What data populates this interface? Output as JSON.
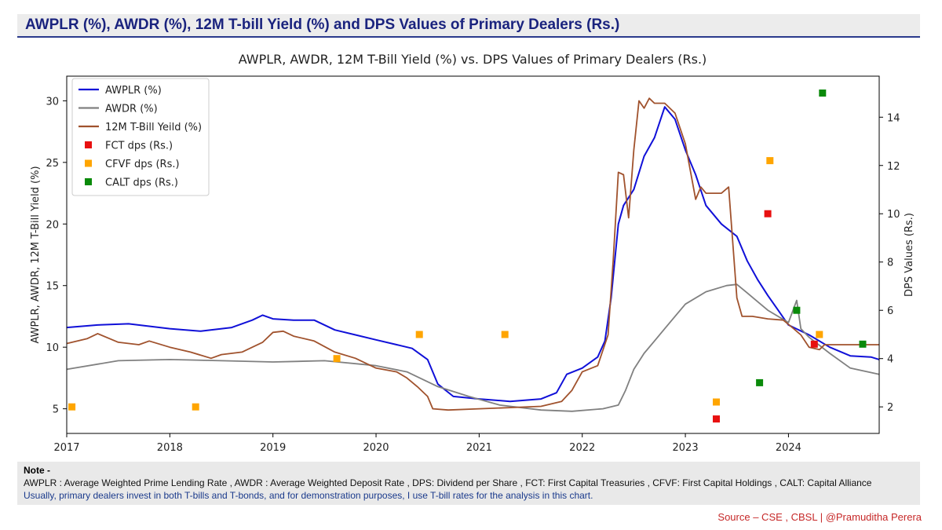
{
  "header": {
    "title": "AWPLR (%), AWDR (%), 12M T-bill Yield (%) and DPS Values of Primary Dealers (Rs.)"
  },
  "note": {
    "title": "Note -",
    "line1": "AWPLR : Average Weighted Prime Lending Rate , AWDR : Average Weighted Deposit Rate , DPS: Dividend per Share , FCT: First Capital Treasuries , CFVF: First Capital Holdings , CALT: Capital Alliance",
    "line2": "Usually, primary dealers invest in both T-bills and T-bonds, and for demonstration purposes, I use T-bill rates for the analysis in this chart."
  },
  "source": "Source – CSE , CBSL  |  @Pramuditha Perera",
  "colors": {
    "awplr": "#1010d8",
    "awdr": "#808080",
    "tbill": "#a0522d",
    "fct": "#e81010",
    "cfvf": "#ffa500",
    "calt": "#0a8a0a",
    "header_accent": "#1a237e"
  },
  "chart_data": {
    "type": "line",
    "title": "AWPLR, AWDR, 12M T-Bill Yield (%) vs. DPS Values of Primary Dealers (Rs.)",
    "ylabel": "AWPLR, AWDR, 12M T-Bill Yield (%)",
    "y2label": "DPS Values (Rs.)",
    "xlim": [
      2017.0,
      2024.88
    ],
    "ylim": [
      3.0,
      32.0
    ],
    "y2lim": [
      0.9,
      15.7
    ],
    "xticks": [
      2017,
      2018,
      2019,
      2020,
      2021,
      2022,
      2023,
      2024
    ],
    "xtick_labels": [
      "2017",
      "2018",
      "2019",
      "2020",
      "2021",
      "2022",
      "2023",
      "2024"
    ],
    "yticks": [
      5,
      10,
      15,
      20,
      25,
      30
    ],
    "ytick_labels": [
      "5",
      "10",
      "15",
      "20",
      "25",
      "30"
    ],
    "y2ticks": [
      2,
      4,
      6,
      8,
      10,
      12,
      14
    ],
    "y2tick_labels": [
      "2",
      "4",
      "6",
      "8",
      "10",
      "12",
      "14"
    ],
    "legend_position": "top-left",
    "grid": false,
    "series": [
      {
        "name": "AWPLR (%)",
        "axis": "left",
        "type": "line",
        "x": [
          2017.0,
          2017.3,
          2017.6,
          2018.0,
          2018.3,
          2018.6,
          2018.8,
          2018.9,
          2019.0,
          2019.2,
          2019.4,
          2019.6,
          2019.8,
          2020.0,
          2020.2,
          2020.35,
          2020.5,
          2020.6,
          2020.75,
          2021.0,
          2021.3,
          2021.6,
          2021.75,
          2021.85,
          2022.0,
          2022.15,
          2022.22,
          2022.28,
          2022.35,
          2022.4,
          2022.5,
          2022.6,
          2022.7,
          2022.8,
          2022.9,
          2023.0,
          2023.1,
          2023.2,
          2023.35,
          2023.5,
          2023.6,
          2023.7,
          2023.8,
          2023.9,
          2024.0,
          2024.2,
          2024.4,
          2024.6,
          2024.8,
          2024.88
        ],
        "y": [
          11.6,
          11.8,
          11.9,
          11.5,
          11.3,
          11.6,
          12.2,
          12.6,
          12.3,
          12.2,
          12.2,
          11.4,
          11.0,
          10.6,
          10.2,
          9.9,
          9.0,
          7.0,
          6.0,
          5.8,
          5.6,
          5.8,
          6.3,
          7.8,
          8.3,
          9.2,
          10.5,
          14.0,
          20.0,
          21.5,
          22.8,
          25.5,
          27.0,
          29.5,
          28.5,
          26.0,
          24.0,
          21.5,
          20.0,
          19.0,
          17.0,
          15.5,
          14.2,
          13.0,
          11.8,
          11.0,
          10.0,
          9.3,
          9.2,
          9.0
        ]
      },
      {
        "name": "AWDR (%)",
        "axis": "left",
        "type": "line",
        "x": [
          2017.0,
          2017.5,
          2018.0,
          2018.5,
          2019.0,
          2019.5,
          2020.0,
          2020.3,
          2020.6,
          2020.9,
          2021.2,
          2021.6,
          2021.9,
          2022.2,
          2022.35,
          2022.42,
          2022.5,
          2022.6,
          2022.7,
          2022.8,
          2022.9,
          2023.0,
          2023.2,
          2023.4,
          2023.5,
          2023.6,
          2023.8,
          2024.0,
          2024.08,
          2024.12,
          2024.2,
          2024.4,
          2024.6,
          2024.88
        ],
        "y": [
          8.2,
          8.9,
          9.0,
          8.9,
          8.8,
          8.9,
          8.5,
          8.0,
          6.8,
          6.0,
          5.3,
          4.9,
          4.8,
          5.0,
          5.3,
          6.5,
          8.2,
          9.5,
          10.5,
          11.5,
          12.5,
          13.5,
          14.5,
          15.0,
          15.1,
          14.4,
          13.0,
          12.0,
          13.8,
          11.5,
          10.8,
          9.5,
          8.3,
          7.8
        ]
      },
      {
        "name": "12M T-Bill Yeild (%)",
        "axis": "left",
        "type": "line",
        "x": [
          2017.0,
          2017.2,
          2017.3,
          2017.5,
          2017.7,
          2017.8,
          2018.0,
          2018.2,
          2018.4,
          2018.5,
          2018.7,
          2018.8,
          2018.9,
          2019.0,
          2019.1,
          2019.2,
          2019.4,
          2019.6,
          2019.8,
          2020.0,
          2020.2,
          2020.3,
          2020.4,
          2020.5,
          2020.55,
          2020.7,
          2021.0,
          2021.3,
          2021.6,
          2021.8,
          2021.9,
          2022.0,
          2022.15,
          2022.25,
          2022.3,
          2022.35,
          2022.4,
          2022.45,
          2022.5,
          2022.55,
          2022.6,
          2022.65,
          2022.7,
          2022.8,
          2022.9,
          2023.0,
          2023.1,
          2023.15,
          2023.2,
          2023.35,
          2023.42,
          2023.5,
          2023.55,
          2023.65,
          2023.8,
          2023.95,
          2024.05,
          2024.12,
          2024.2,
          2024.3,
          2024.35,
          2024.5,
          2024.88
        ],
        "y": [
          10.3,
          10.7,
          11.1,
          10.4,
          10.2,
          10.5,
          10.0,
          9.6,
          9.1,
          9.4,
          9.6,
          10.0,
          10.4,
          11.2,
          11.3,
          10.9,
          10.5,
          9.6,
          9.1,
          8.3,
          8.0,
          7.5,
          6.8,
          6.0,
          5.0,
          4.9,
          5.0,
          5.1,
          5.2,
          5.6,
          6.5,
          8.0,
          8.5,
          11.0,
          17.0,
          24.2,
          24.0,
          20.5,
          26.0,
          30.0,
          29.4,
          30.2,
          29.8,
          29.8,
          29.0,
          26.5,
          22.0,
          23.0,
          22.5,
          22.5,
          23.0,
          14.0,
          12.5,
          12.5,
          12.3,
          12.2,
          11.5,
          11.0,
          10.0,
          9.8,
          10.2,
          10.2,
          10.2
        ]
      },
      {
        "name": "FCT dps (Rs.)",
        "axis": "right",
        "type": "scatter",
        "x": [
          2023.3,
          2023.8,
          2024.25
        ],
        "y": [
          1.5,
          10.0,
          4.6
        ]
      },
      {
        "name": "CFVF dps (Rs.)",
        "axis": "right",
        "type": "scatter",
        "x": [
          2017.05,
          2018.25,
          2019.62,
          2020.42,
          2021.25,
          2023.3,
          2023.82,
          2024.3
        ],
        "y": [
          2.0,
          2.0,
          4.0,
          5.0,
          5.0,
          2.2,
          12.2,
          5.0
        ]
      },
      {
        "name": "CALT dps (Rs.)",
        "axis": "right",
        "type": "scatter",
        "x": [
          2023.72,
          2024.08,
          2024.33,
          2024.72
        ],
        "y": [
          3.0,
          6.0,
          15.0,
          4.6
        ]
      }
    ]
  }
}
